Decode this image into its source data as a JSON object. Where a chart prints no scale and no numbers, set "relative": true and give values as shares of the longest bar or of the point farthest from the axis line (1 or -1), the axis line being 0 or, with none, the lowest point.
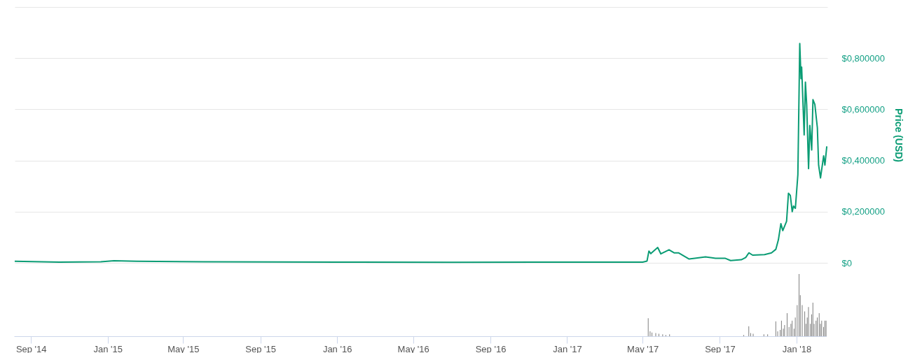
{
  "chart_data": [
    {
      "type": "line",
      "ylabel": "Price (USD)",
      "tick_labels": "y",
      "grid": "y",
      "xlim": [
        "2014-08-05",
        "2018-02-18"
      ],
      "ylim": [
        0,
        1
      ],
      "yticks": [
        {
          "value": 0,
          "label": "$0"
        },
        {
          "value": 0.2,
          "label": "$0,200000"
        },
        {
          "value": 0.4,
          "label": "$0,400000"
        },
        {
          "value": 0.6,
          "label": "$0,600000"
        },
        {
          "value": 0.8,
          "label": "$0,800000"
        },
        {
          "value": 1,
          "label": null
        }
      ],
      "x": [
        "2014-08-05",
        "2014-10-15",
        "2014-12-20",
        "2015-01-10",
        "2015-02-15",
        "2015-06-01",
        "2016-01-01",
        "2016-07-01",
        "2017-01-01",
        "2017-04-30",
        "2017-05-07",
        "2017-05-10",
        "2017-05-13",
        "2017-05-24",
        "2017-05-29",
        "2017-06-11",
        "2017-06-19",
        "2017-06-26",
        "2017-07-13",
        "2017-07-22",
        "2017-08-08",
        "2017-08-24",
        "2017-09-08",
        "2017-09-17",
        "2017-10-04",
        "2017-10-11",
        "2017-10-16",
        "2017-10-22",
        "2017-11-10",
        "2017-11-21",
        "2017-11-28",
        "2017-12-02",
        "2017-12-06",
        "2017-12-09",
        "2017-12-15",
        "2017-12-18",
        "2017-12-21",
        "2017-12-24",
        "2017-12-26",
        "2017-12-29",
        "2018-01-02",
        "2018-01-05",
        "2018-01-07",
        "2018-01-08",
        "2018-01-12",
        "2018-01-14",
        "2018-01-16",
        "2018-01-19",
        "2018-01-21",
        "2018-01-24",
        "2018-01-26",
        "2018-01-29",
        "2018-02-02",
        "2018-02-04",
        "2018-02-07",
        "2018-02-12",
        "2018-02-14",
        "2018-02-17"
      ],
      "series": [
        {
          "color": "#0a9c74",
          "values": [
            0.006,
            0.003,
            0.004,
            0.008,
            0.006,
            0.004,
            0.003,
            0.002,
            0.003,
            0.003,
            0.007,
            0.046,
            0.036,
            0.06,
            0.035,
            0.051,
            0.039,
            0.039,
            0.015,
            0.018,
            0.023,
            0.018,
            0.018,
            0.009,
            0.012,
            0.021,
            0.039,
            0.03,
            0.032,
            0.039,
            0.053,
            0.09,
            0.153,
            0.126,
            0.162,
            0.272,
            0.263,
            0.2,
            0.222,
            0.213,
            0.345,
            0.857,
            0.72,
            0.765,
            0.5,
            0.706,
            0.619,
            0.368,
            0.537,
            0.441,
            0.638,
            0.619,
            0.528,
            0.382,
            0.332,
            0.418,
            0.382,
            0.455
          ]
        }
      ]
    },
    {
      "type": "bar",
      "relative": true,
      "tick_labels": "x",
      "color": "#7f7f7f",
      "xlim": [
        "2014-08-05",
        "2018-02-18"
      ],
      "xticks": [
        {
          "value": "2014-09-01",
          "label": "Sep '14"
        },
        {
          "value": "2015-01-01",
          "label": "Jan '15"
        },
        {
          "value": "2015-05-01",
          "label": "May '15"
        },
        {
          "value": "2015-09-01",
          "label": "Sep '15"
        },
        {
          "value": "2016-01-01",
          "label": "Jan '16"
        },
        {
          "value": "2016-05-01",
          "label": "May '16"
        },
        {
          "value": "2016-09-01",
          "label": "Sep '16"
        },
        {
          "value": "2017-01-01",
          "label": "Jan '17"
        },
        {
          "value": "2017-05-01",
          "label": "May '17"
        },
        {
          "value": "2017-09-01",
          "label": "Sep '17"
        },
        {
          "value": "2018-01-01",
          "label": "Jan '18"
        }
      ],
      "x": [
        "2017-05-10",
        "2017-05-13",
        "2017-05-16",
        "2017-05-22",
        "2017-05-27",
        "2017-06-02",
        "2017-06-07",
        "2017-06-13",
        "2017-10-09",
        "2017-10-17",
        "2017-10-20",
        "2017-10-24",
        "2017-11-10",
        "2017-11-16",
        "2017-11-29",
        "2017-12-02",
        "2017-12-06",
        "2017-12-08",
        "2017-12-11",
        "2017-12-13",
        "2017-12-17",
        "2017-12-20",
        "2017-12-23",
        "2017-12-25",
        "2017-12-28",
        "2017-12-30",
        "2018-01-02",
        "2018-01-05",
        "2018-01-07",
        "2018-01-10",
        "2018-01-14",
        "2018-01-16",
        "2018-01-18",
        "2018-01-20",
        "2018-01-23",
        "2018-01-25",
        "2018-01-27",
        "2018-01-29",
        "2018-02-01",
        "2018-02-03",
        "2018-02-06",
        "2018-02-08",
        "2018-02-10",
        "2018-02-13",
        "2018-02-15",
        "2018-02-17"
      ],
      "values": [
        0.29,
        0.08,
        0.06,
        0.05,
        0.04,
        0.03,
        0.02,
        0.03,
        0.02,
        0.16,
        0.05,
        0.04,
        0.03,
        0.03,
        0.24,
        0.08,
        0.1,
        0.25,
        0.12,
        0.18,
        0.37,
        0.15,
        0.2,
        0.25,
        0.12,
        0.3,
        0.5,
        1,
        0.66,
        0.5,
        0.4,
        0.2,
        0.3,
        0.47,
        0.2,
        0.35,
        0.54,
        0.2,
        0.25,
        0.3,
        0.37,
        0.2,
        0.25,
        0.15,
        0.25,
        0.25
      ]
    }
  ]
}
